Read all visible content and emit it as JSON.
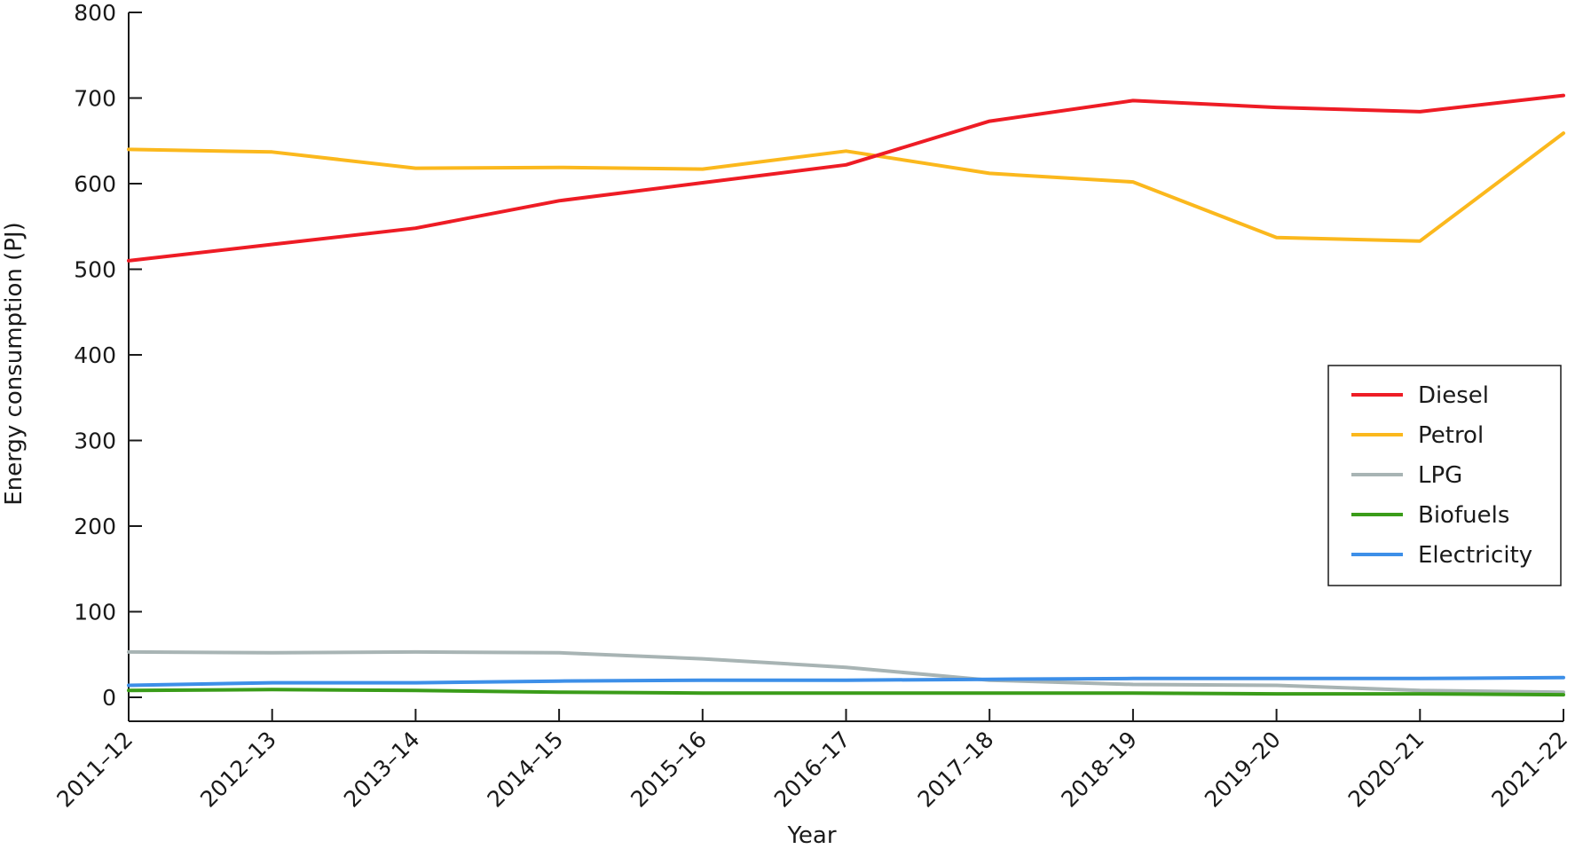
{
  "chart_data": {
    "type": "line",
    "title": "",
    "xlabel": "Year",
    "ylabel": "Energy consumption (PJ)",
    "ylim": [
      0,
      800
    ],
    "yticks": [
      0,
      100,
      200,
      300,
      400,
      500,
      600,
      700,
      800
    ],
    "grid": false,
    "legend_position": "right",
    "categories": [
      "2011–12",
      "2012–13",
      "2013–14",
      "2014–15",
      "2015–16",
      "2016–17",
      "2017–18",
      "2018–19",
      "2019–20",
      "2020–21",
      "2021–22"
    ],
    "series": [
      {
        "name": "Diesel",
        "color": "#ee1c25",
        "values": [
          510,
          529,
          548,
          580,
          601,
          622,
          673,
          697,
          689,
          684,
          703
        ]
      },
      {
        "name": "Petrol",
        "color": "#fbb81d",
        "values": [
          640,
          637,
          618,
          619,
          617,
          638,
          612,
          602,
          537,
          533,
          659
        ]
      },
      {
        "name": "LPG",
        "color": "#a8b4b4",
        "values": [
          53,
          52,
          53,
          52,
          45,
          35,
          20,
          15,
          14,
          8,
          6
        ]
      },
      {
        "name": "Biofuels",
        "color": "#3a9c19",
        "values": [
          8,
          9,
          8,
          6,
          5,
          5,
          5,
          5,
          4,
          4,
          3
        ]
      },
      {
        "name": "Electricity",
        "color": "#3d8fe8",
        "values": [
          14,
          17,
          17,
          19,
          20,
          20,
          21,
          22,
          22,
          22,
          23
        ]
      }
    ]
  }
}
